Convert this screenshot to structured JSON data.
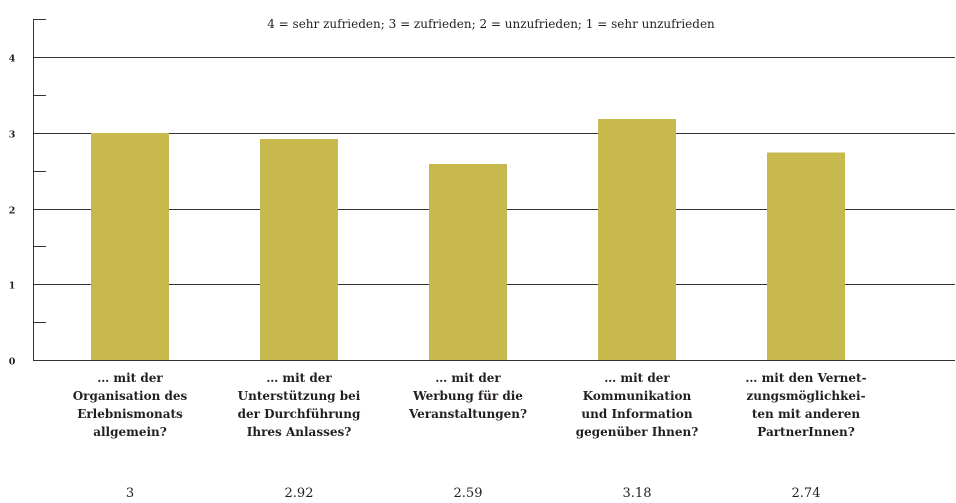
{
  "chart_data": {
    "type": "bar",
    "annotation": "4 = sehr zufrieden; 3 = zufrieden; 2 = unzufrieden; 1 = sehr unzufrieden",
    "categories": [
      [
        "… mit der",
        "Organisation des",
        "Erlebnismonats",
        "allgemein?"
      ],
      [
        "… mit der",
        "Unterstützung bei",
        "der Durchführung",
        "Ihres Anlasses?"
      ],
      [
        "… mit der",
        "Werbung für die",
        "Veranstaltungen?"
      ],
      [
        "… mit der",
        "Kommunikation",
        "und Information",
        "gegenüber Ihnen?"
      ],
      [
        "… mit den Vernet-",
        "zungsmöglichkei-",
        "ten mit anderen",
        "PartnerInnen?"
      ]
    ],
    "values": [
      3,
      2.92,
      2.59,
      3.18,
      2.74
    ],
    "ylim": [
      0,
      4.5
    ],
    "yticks": [
      0,
      1,
      2,
      3,
      4
    ],
    "minor_ticks": [
      0.5,
      1.5,
      2.5,
      3.5,
      4.5
    ],
    "grid": true,
    "colors": {
      "bar": "#c8b94f",
      "grid": "#333333",
      "text": "#231f20"
    }
  }
}
